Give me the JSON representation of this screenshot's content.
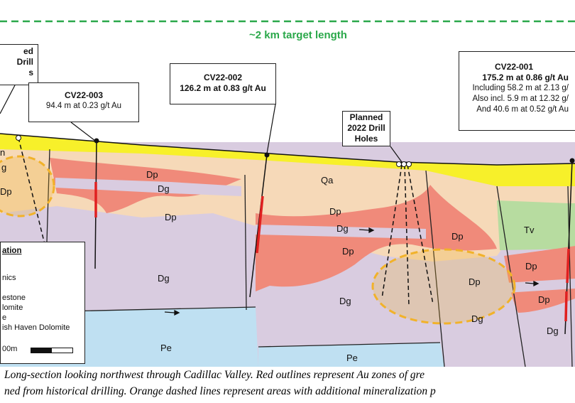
{
  "target_length": {
    "label": "~2 km target length",
    "color": "#2aa84a"
  },
  "callouts": {
    "cv22_003": {
      "title": "CV22-003",
      "lines": [
        "94.4 m at 0.23 g/t Au"
      ]
    },
    "cv22_002": {
      "title": "CV22-002",
      "lines": [
        "126.2 m at 0.83 g/t Au"
      ]
    },
    "planned_right": {
      "title_lines": [
        "Planned",
        "2022 Drill",
        "Holes"
      ]
    },
    "planned_left": {
      "title_lines": [
        "ed",
        "Drill",
        "s"
      ]
    },
    "cv22_001": {
      "title": "CV22-001",
      "lines": [
        "175.2 m at 0.86 g/t Au",
        "Including 58.2 m at 2.13 g/",
        "Also incl. 5.9 m at 12.32 g/",
        "And 40.6 m at 0.52 g/t Au"
      ]
    }
  },
  "units": {
    "qa": "Qa",
    "dp": "Dp",
    "dg": "Dg",
    "pe": "Pe",
    "tv": "Tv",
    "n": "n",
    "dg_frag": "g",
    "dp_frag": "Dp"
  },
  "legend": {
    "title": "ation",
    "items": [
      "nics",
      "estone",
      "lomite",
      "e",
      "ish Haven Dolomite"
    ],
    "scale": "00m"
  },
  "caption": {
    "line1": "Long-section looking northwest through Cadillac Valley. Red outlines represent Au zones of gre",
    "line2": "ned from historical drilling. Orange dashed lines represent areas with additional mineralization p"
  },
  "colors": {
    "qa": "#f7f02a",
    "dp_light": "#f6d9b8",
    "dg": "#d9cce0",
    "pe": "#bfe0f2",
    "tv": "#b7dca0",
    "au_zone": "#f08a7a",
    "drill_hole_red": "#e02020",
    "target_ellipse": "#f1b22a"
  }
}
